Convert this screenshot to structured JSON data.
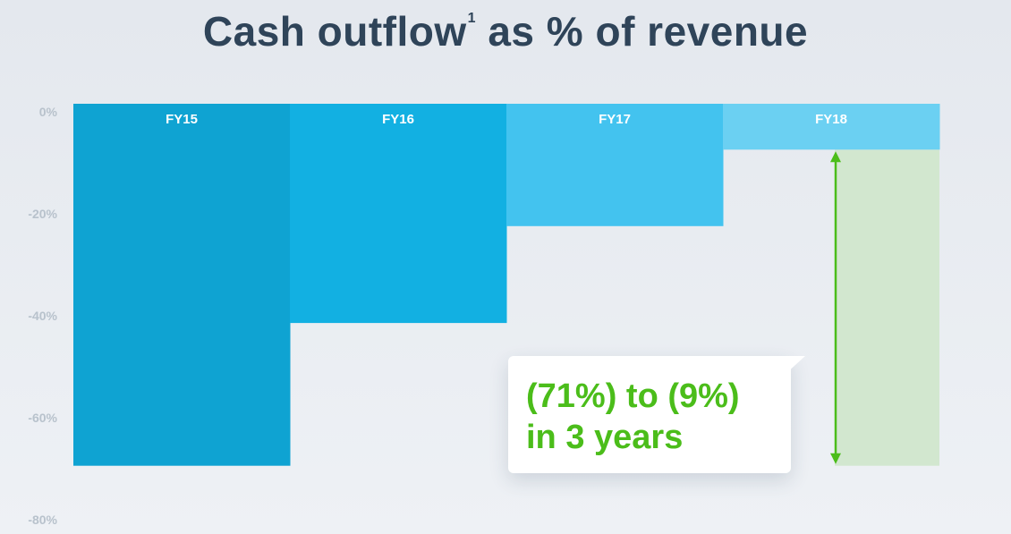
{
  "title": "Cash outflow",
  "title_footnote": "1",
  "title_suffix": "as % of revenue",
  "callout": {
    "line1": "(71%) to (9%)",
    "line2": "in 3 years"
  },
  "colors": {
    "bars": [
      "#0fa3d2",
      "#12b0e2",
      "#43c3ef",
      "#6bd0f2"
    ],
    "highlight_fill": "#d2e7cf",
    "arrow": "#4bbd1a",
    "tick_text": "#b8c2cc"
  },
  "chart_data": {
    "type": "bar",
    "orientation": "downward",
    "categories": [
      "FY15",
      "FY16",
      "FY17",
      "FY18"
    ],
    "values": [
      -71,
      -43,
      -24,
      -9
    ],
    "ylim": [
      -80,
      0
    ],
    "yticks": [
      "0%",
      "-20%",
      "-40%",
      "-60%",
      "-80%"
    ],
    "ytick_values": [
      0,
      -20,
      -40,
      -60,
      -80
    ],
    "xlabel": "",
    "ylabel": "",
    "grid": false,
    "annotation": "(71%) to (9%) in 3 years"
  }
}
